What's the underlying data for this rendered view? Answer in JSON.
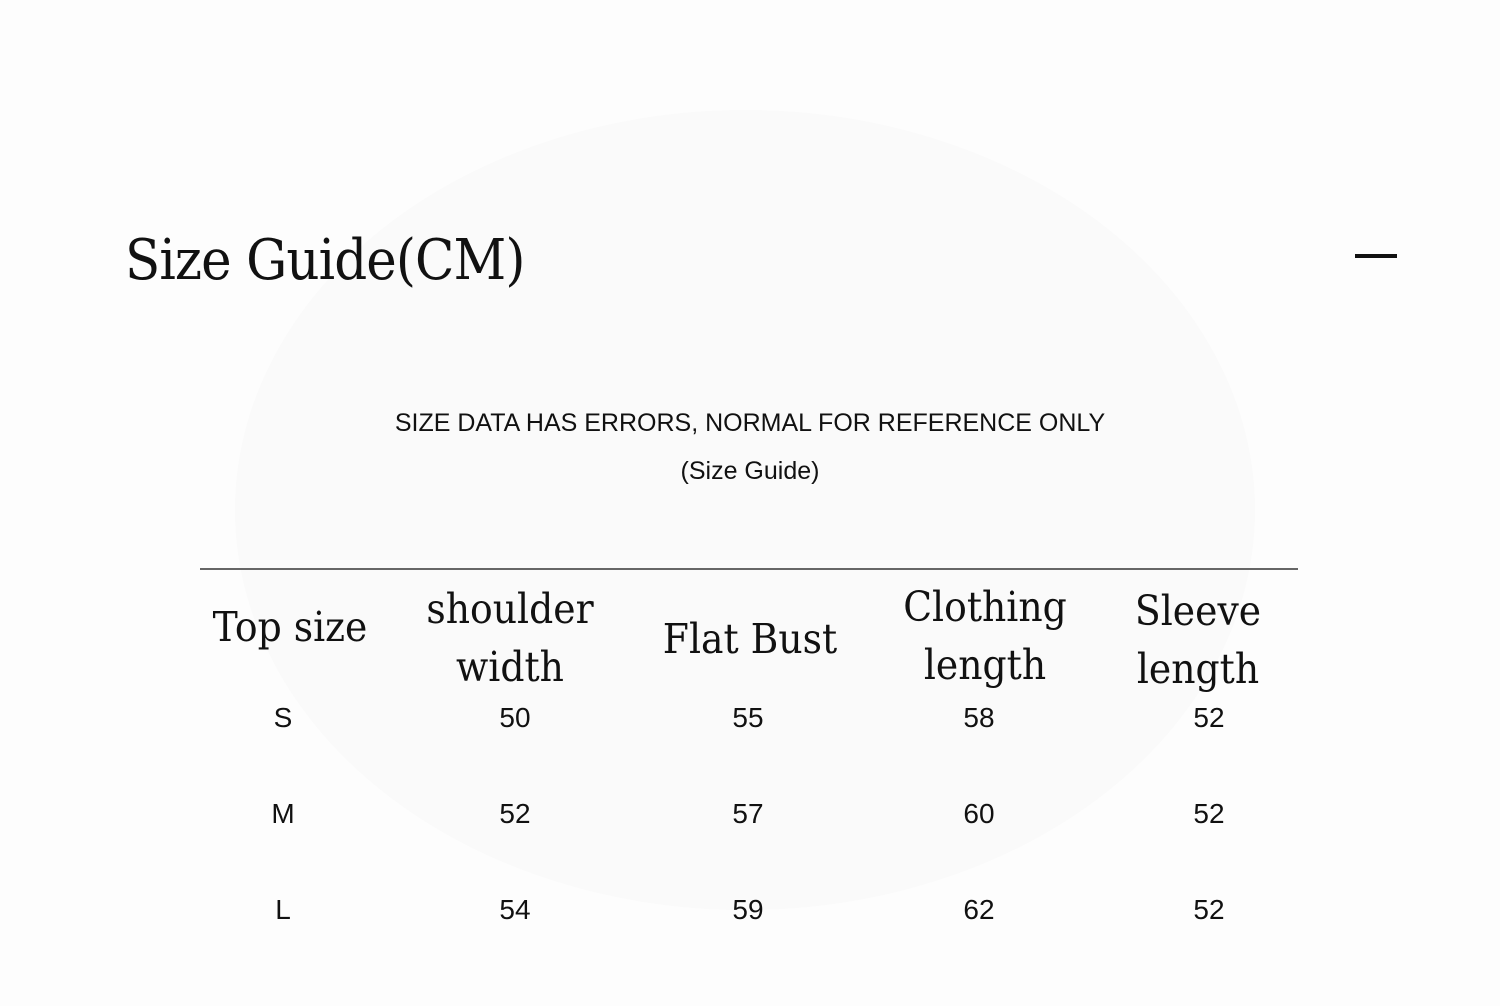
{
  "title": "Size Guide(CM)",
  "collapse_icon": "minus-icon",
  "note": "SIZE DATA HAS ERRORS, NORMAL FOR REFERENCE ONLY",
  "subnote": "(Size Guide)",
  "table": {
    "headers": [
      "Top size",
      "shoulder width",
      "Flat Bust",
      "Clothing length",
      "Sleeve length"
    ],
    "rows": [
      [
        "S",
        "50",
        "55",
        "58",
        "52"
      ],
      [
        "M",
        "52",
        "57",
        "60",
        "52"
      ],
      [
        "L",
        "54",
        "59",
        "62",
        "52"
      ]
    ]
  }
}
